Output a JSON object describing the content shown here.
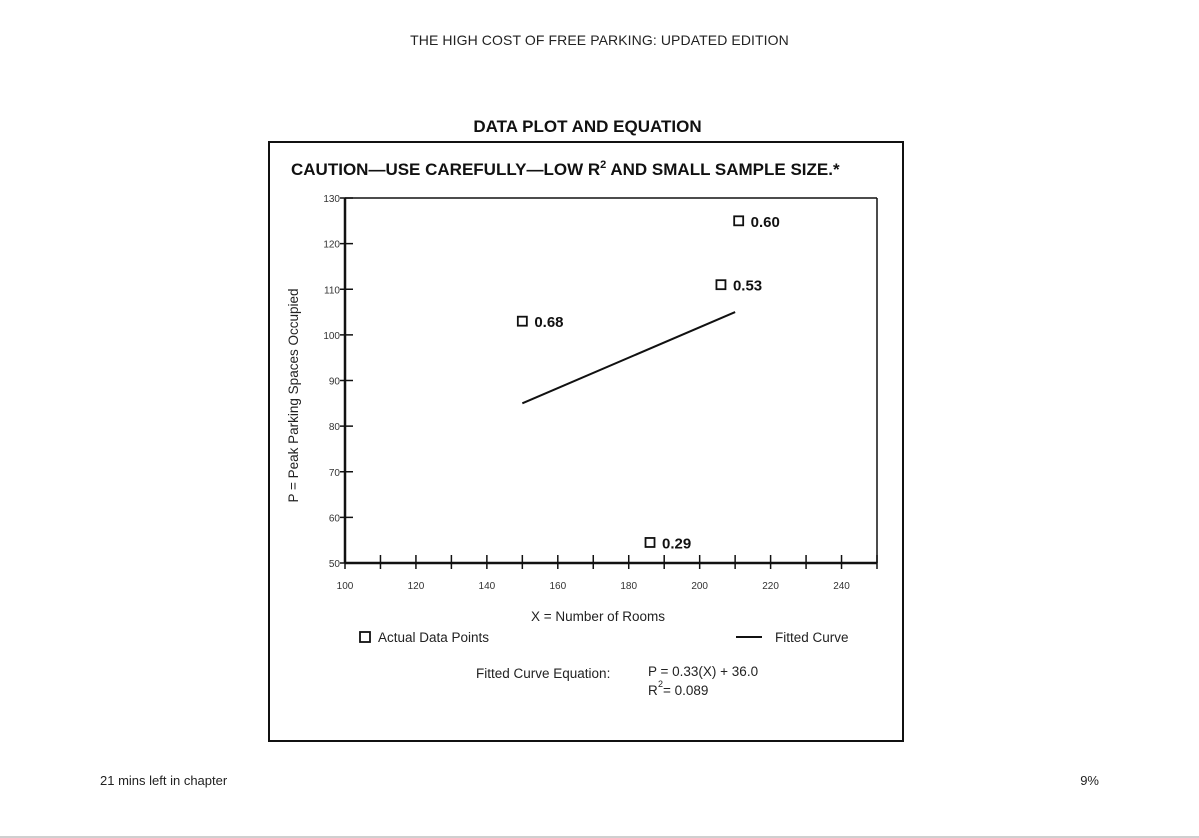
{
  "book_title": "THE HIGH COST OF FREE PARKING: UPDATED EDITION",
  "footer": {
    "time_left": "21 mins left in chapter",
    "progress": "9%"
  },
  "chart_data": {
    "type": "scatter",
    "title": "DATA PLOT AND EQUATION",
    "subtitle": {
      "before": "CAUTION—USE CAREFULLY—LOW R",
      "sup": "2",
      "after": " AND SMALL SAMPLE SIZE.*"
    },
    "xlabel": "X = Number of Rooms",
    "ylabel": "P = Peak Parking Spaces Occupied",
    "xlim": [
      100,
      250
    ],
    "ylim": [
      50,
      130
    ],
    "x_ticks": [
      "100",
      "120",
      "140",
      "160",
      "180",
      "200",
      "220",
      "240"
    ],
    "y_ticks": [
      "50",
      "60",
      "70",
      "80",
      "90",
      "100",
      "110",
      "120",
      "130"
    ],
    "series": [
      {
        "name": "Actual Data Points",
        "type": "scatter",
        "points": [
          {
            "x": 150,
            "y": 103,
            "label": "0.68"
          },
          {
            "x": 186,
            "y": 54.5,
            "label": "0.29"
          },
          {
            "x": 206,
            "y": 111,
            "label": "0.53"
          },
          {
            "x": 211,
            "y": 125,
            "label": "0.60"
          }
        ]
      },
      {
        "name": "Fitted Curve",
        "type": "line",
        "points": [
          {
            "x": 150,
            "y": 85
          },
          {
            "x": 210,
            "y": 105
          }
        ]
      }
    ],
    "equation": {
      "label": "Fitted Curve Equation:",
      "line1": "P = 0.33(X) + 36.0",
      "r_base": "R",
      "r_sup": "2",
      "r_rest": " = 0.089"
    },
    "legend_position": "bottom"
  }
}
